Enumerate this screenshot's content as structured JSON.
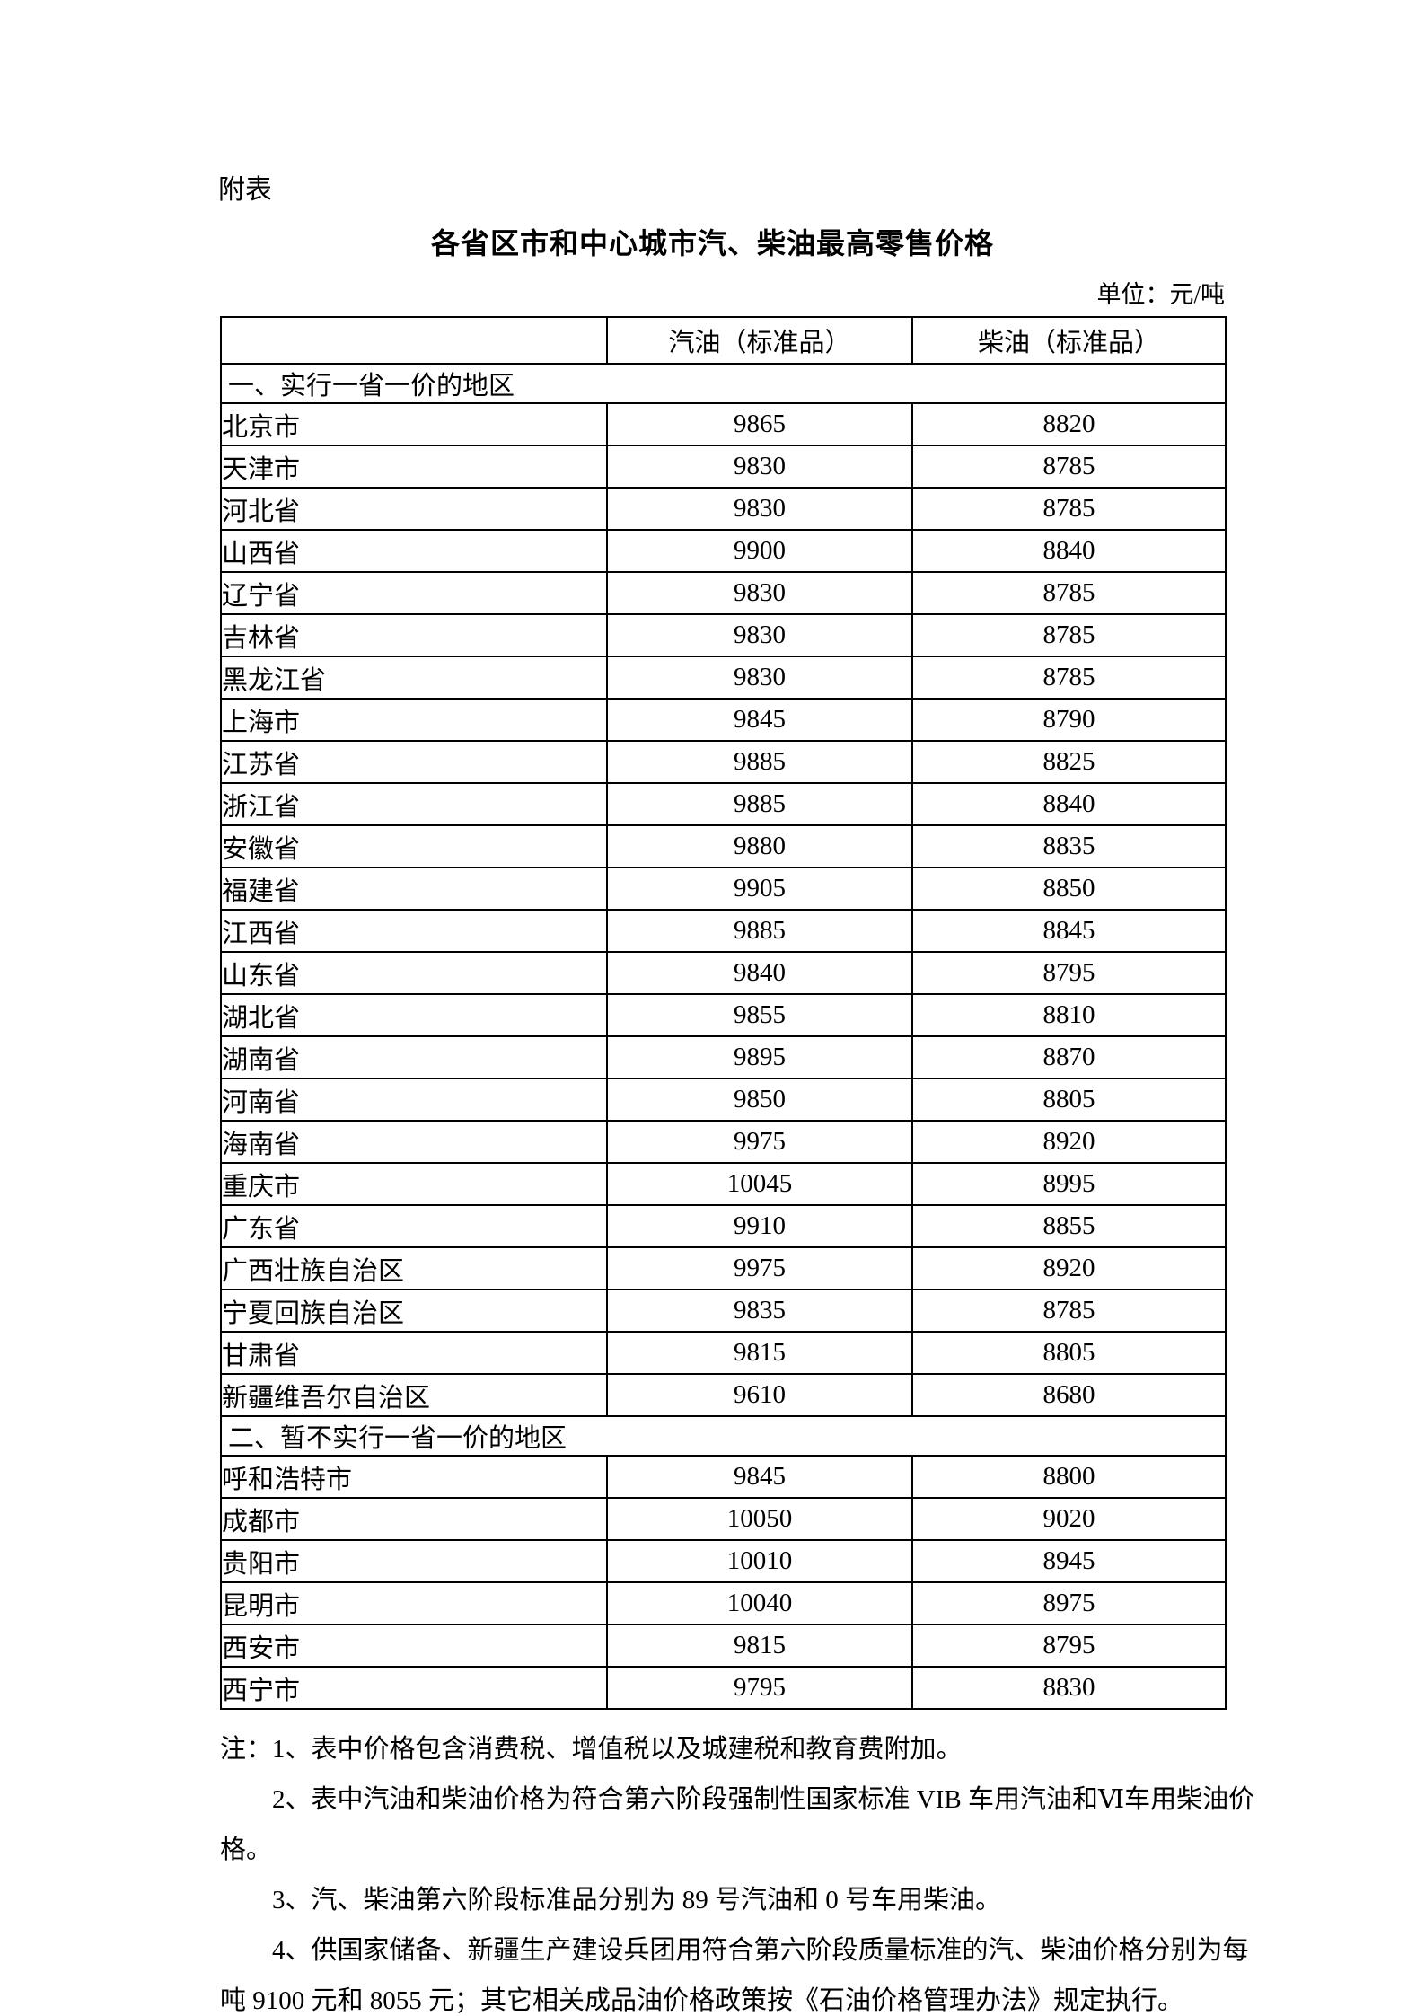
{
  "page": {
    "attachment_label": "附表",
    "title": "各省区市和中心城市汽、柴油最高零售价格",
    "unit_label": "单位：元/吨"
  },
  "table": {
    "columns": [
      "",
      "汽油（标准品）",
      "柴油（标准品）"
    ],
    "sections": [
      {
        "heading": "一、实行一省一价的地区",
        "rows": [
          {
            "region": "北京市",
            "gasoline": "9865",
            "diesel": "8820"
          },
          {
            "region": "天津市",
            "gasoline": "9830",
            "diesel": "8785"
          },
          {
            "region": "河北省",
            "gasoline": "9830",
            "diesel": "8785"
          },
          {
            "region": "山西省",
            "gasoline": "9900",
            "diesel": "8840"
          },
          {
            "region": "辽宁省",
            "gasoline": "9830",
            "diesel": "8785"
          },
          {
            "region": "吉林省",
            "gasoline": "9830",
            "diesel": "8785"
          },
          {
            "region": "黑龙江省",
            "gasoline": "9830",
            "diesel": "8785"
          },
          {
            "region": "上海市",
            "gasoline": "9845",
            "diesel": "8790"
          },
          {
            "region": "江苏省",
            "gasoline": "9885",
            "diesel": "8825"
          },
          {
            "region": "浙江省",
            "gasoline": "9885",
            "diesel": "8840"
          },
          {
            "region": "安徽省",
            "gasoline": "9880",
            "diesel": "8835"
          },
          {
            "region": "福建省",
            "gasoline": "9905",
            "diesel": "8850"
          },
          {
            "region": "江西省",
            "gasoline": "9885",
            "diesel": "8845"
          },
          {
            "region": "山东省",
            "gasoline": "9840",
            "diesel": "8795"
          },
          {
            "region": "湖北省",
            "gasoline": "9855",
            "diesel": "8810"
          },
          {
            "region": "湖南省",
            "gasoline": "9895",
            "diesel": "8870"
          },
          {
            "region": "河南省",
            "gasoline": "9850",
            "diesel": "8805"
          },
          {
            "region": "海南省",
            "gasoline": "9975",
            "diesel": "8920"
          },
          {
            "region": "重庆市",
            "gasoline": "10045",
            "diesel": "8995"
          },
          {
            "region": "广东省",
            "gasoline": "9910",
            "diesel": "8855"
          },
          {
            "region": "广西壮族自治区",
            "gasoline": "9975",
            "diesel": "8920"
          },
          {
            "region": "宁夏回族自治区",
            "gasoline": "9835",
            "diesel": "8785"
          },
          {
            "region": "甘肃省",
            "gasoline": "9815",
            "diesel": "8805"
          },
          {
            "region": "新疆维吾尔自治区",
            "gasoline": "9610",
            "diesel": "8680"
          }
        ]
      },
      {
        "heading": "二、暂不实行一省一价的地区",
        "rows": [
          {
            "region": "呼和浩特市",
            "gasoline": "9845",
            "diesel": "8800"
          },
          {
            "region": "成都市",
            "gasoline": "10050",
            "diesel": "9020"
          },
          {
            "region": "贵阳市",
            "gasoline": "10010",
            "diesel": "8945"
          },
          {
            "region": "昆明市",
            "gasoline": "10040",
            "diesel": "8975"
          },
          {
            "region": "西安市",
            "gasoline": "9815",
            "diesel": "8795"
          },
          {
            "region": "西宁市",
            "gasoline": "9795",
            "diesel": "8830"
          }
        ]
      }
    ]
  },
  "notes": {
    "lines": [
      {
        "indent": false,
        "text": "注：1、表中价格包含消费税、增值税以及城建税和教育费附加。"
      },
      {
        "indent": true,
        "text": "2、表中汽油和柴油价格为符合第六阶段强制性国家标准 VIB 车用汽油和Ⅵ车用柴油价"
      },
      {
        "indent": false,
        "text": "格。"
      },
      {
        "indent": true,
        "text": "3、汽、柴油第六阶段标准品分别为 89 号汽油和 0 号车用柴油。"
      },
      {
        "indent": true,
        "text": "4、供国家储备、新疆生产建设兵团用符合第六阶段质量标准的汽、柴油价格分别为每"
      },
      {
        "indent": false,
        "text": "吨 9100 元和 8055 元；其它相关成品油价格政策按《石油价格管理办法》规定执行。"
      }
    ]
  }
}
